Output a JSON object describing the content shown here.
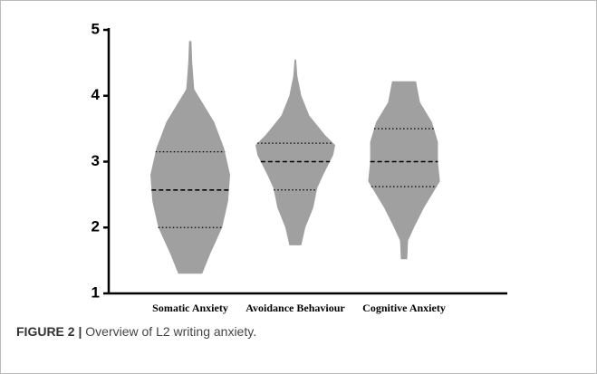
{
  "chart_data": {
    "type": "violin",
    "categories": [
      "Somatic Anxiety",
      "Avoidance Behaviour",
      "Cognitive Anxiety"
    ],
    "color": "#a0a0a0",
    "ylim": [
      1,
      5
    ],
    "yticks": [
      1,
      2,
      3,
      4,
      5
    ],
    "violins": [
      {
        "min": 1.3,
        "max": 4.83,
        "q1": 2.0,
        "median": 2.57,
        "q3": 3.15,
        "density_y": [
          1.3,
          1.6,
          2.0,
          2.4,
          2.8,
          3.2,
          3.6,
          3.9,
          4.1,
          4.5,
          4.83
        ],
        "density": [
          0.3,
          0.5,
          0.8,
          0.95,
          1.0,
          0.85,
          0.6,
          0.3,
          0.1,
          0.05,
          0.03
        ]
      },
      {
        "min": 1.73,
        "max": 4.55,
        "q1": 2.57,
        "median": 3.0,
        "q3": 3.28,
        "density_y": [
          1.73,
          2.0,
          2.3,
          2.6,
          2.8,
          3.1,
          3.25,
          3.4,
          3.7,
          4.0,
          4.3,
          4.55
        ],
        "density": [
          0.15,
          0.25,
          0.45,
          0.55,
          0.7,
          0.95,
          1.0,
          0.75,
          0.35,
          0.15,
          0.05,
          0.02
        ]
      },
      {
        "min": 1.52,
        "max": 4.22,
        "q1": 2.62,
        "median": 3.0,
        "q3": 3.5,
        "density_y": [
          1.52,
          1.8,
          2.0,
          2.3,
          2.7,
          3.0,
          3.3,
          3.6,
          3.9,
          4.22
        ],
        "density": [
          0.08,
          0.1,
          0.25,
          0.5,
          0.9,
          0.85,
          0.85,
          0.7,
          0.4,
          0.3
        ]
      }
    ]
  },
  "caption": {
    "label": "FIGURE 2 |",
    "text": "Overview of L2 writing anxiety."
  }
}
